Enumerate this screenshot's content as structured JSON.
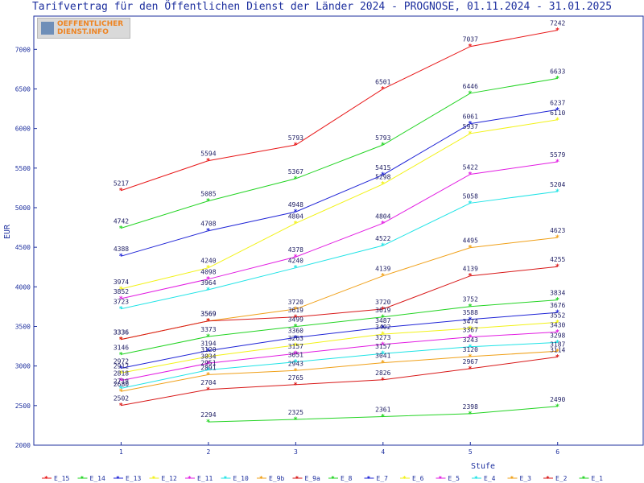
{
  "title": "Tarifvertrag für den Öffentlichen Dienst der Länder 2024 - PROGNOSE, 01.11.2024 - 31.01.2025",
  "logo": {
    "line1": "OEFFENTLICHER",
    "line2": "DIENST.INFO"
  },
  "chart_data": {
    "type": "line",
    "title": "Tarifvertrag für den Öffentlichen Dienst der Länder 2024 - PROGNOSE, 01.11.2024 - 31.01.2025",
    "xlabel": "Stufe",
    "ylabel": "EUR",
    "x": [
      1,
      2,
      3,
      4,
      5,
      6
    ],
    "xlim": [
      0,
      6.98
    ],
    "ylim": [
      2000,
      7420
    ],
    "yticks": [
      2000,
      2500,
      3000,
      3500,
      4000,
      4500,
      5000,
      5500,
      6000,
      6500,
      7000
    ],
    "grid": false,
    "legend_position": "bottom",
    "series": [
      {
        "name": "E_15",
        "color": "#e8191a",
        "values": [
          5217,
          5594,
          5793,
          6501,
          7037,
          7242
        ]
      },
      {
        "name": "E_14",
        "color": "#23d423",
        "values": [
          4742,
          5085,
          5367,
          5793,
          6446,
          6633
        ]
      },
      {
        "name": "E_13",
        "color": "#1f24d6",
        "values": [
          4388,
          4708,
          4948,
          5415,
          6061,
          6237
        ]
      },
      {
        "name": "E_12",
        "color": "#f2f216",
        "values": [
          3974,
          4240,
          4804,
          5298,
          5937,
          6110
        ]
      },
      {
        "name": "E_11",
        "color": "#e21ce2",
        "values": [
          3852,
          4098,
          4378,
          4804,
          5422,
          5579
        ]
      },
      {
        "name": "E_10",
        "color": "#1fe3e6",
        "values": [
          3723,
          3964,
          4240,
          4522,
          5058,
          5204
        ]
      },
      {
        "name": "E_9b",
        "color": "#f0a018",
        "values": [
          3336,
          3569,
          3720,
          4139,
          4495,
          4623
        ]
      },
      {
        "name": "E_9a",
        "color": "#d81818",
        "values": [
          3336,
          3569,
          3619,
          3720,
          4139,
          4255
        ]
      },
      {
        "name": "E_8",
        "color": "#23d423",
        "values": [
          3146,
          3373,
          3499,
          3619,
          3752,
          3834
        ]
      },
      {
        "name": "E_7",
        "color": "#1f24d6",
        "values": [
          2972,
          3194,
          3360,
          3487,
          3588,
          3676
        ]
      },
      {
        "name": "E_6",
        "color": "#f2f216",
        "values": [
          2912,
          3120,
          3263,
          3402,
          3474,
          3552
        ]
      },
      {
        "name": "E_5",
        "color": "#e21ce2",
        "values": [
          2818,
          3034,
          3157,
          3273,
          3367,
          3430
        ]
      },
      {
        "name": "E_4",
        "color": "#1fe3e6",
        "values": [
          2718,
          2951,
          3051,
          3157,
          3243,
          3298
        ]
      },
      {
        "name": "E_3",
        "color": "#f0a018",
        "values": [
          2680,
          2891,
          2943,
          3041,
          3120,
          3187
        ]
      },
      {
        "name": "E_2",
        "color": "#d81818",
        "values": [
          2502,
          2704,
          2765,
          2826,
          2967,
          3114
        ]
      },
      {
        "name": "E_1",
        "color": "#23d423",
        "values": [
          null,
          2294,
          2325,
          2361,
          2398,
          2490
        ]
      }
    ]
  }
}
